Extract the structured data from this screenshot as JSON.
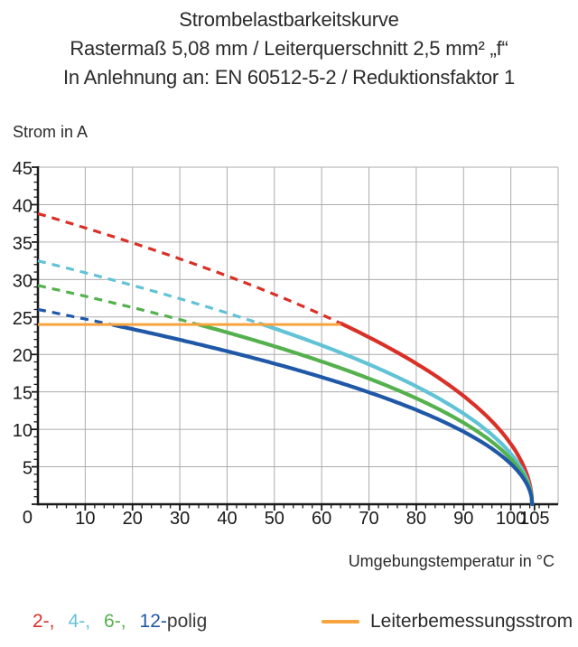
{
  "title": {
    "line1": "Strombelastbarkeitskurve",
    "line2": "Rastermaß 5,08 mm / Leiterquerschnitt 2,5 mm² „f“",
    "line3": "In Anlehnung an: EN 60512-5-2 / Reduktionsfaktor 1"
  },
  "y_axis": {
    "title": "Strom in A",
    "ticks": [
      45,
      40,
      35,
      30,
      25,
      20,
      15,
      10,
      5,
      0
    ],
    "min": 0,
    "max": 45,
    "major_step": 5,
    "minor_step": 1
  },
  "x_axis": {
    "title": "Umgebungstemperatur in °C",
    "ticks": [
      10,
      20,
      30,
      40,
      50,
      60,
      70,
      80,
      90,
      100,
      105
    ],
    "min": 0,
    "max": 110,
    "major_step": 10,
    "minor_step": 2
  },
  "legend": {
    "items": [
      {
        "label": "2-",
        "color": "#D93128"
      },
      {
        "label": "4-",
        "color": "#62C3D6"
      },
      {
        "label": "6-",
        "color": "#54B14E"
      },
      {
        "label": "12-",
        "color": "#2058A8"
      }
    ],
    "separator": ",",
    "suffix": "polig",
    "suffix_color": "#3A3A3A"
  },
  "rated_legend": {
    "label": "Leiterbemessungsstrom",
    "color": "#F7A440"
  },
  "colors": {
    "grid": "#ACACAC",
    "axis": "#1A1A1A",
    "tick_text": "#1A1A1A"
  },
  "chart_data": {
    "type": "line",
    "title": "Strombelastbarkeitskurve",
    "xlabel": "Umgebungstemperatur in °C",
    "ylabel": "Strom in A",
    "xlim": [
      0,
      110
    ],
    "ylim": [
      0,
      45
    ],
    "grid": true,
    "curve_model": "I(T) = I0 * sqrt(1 - T/Tmax); drawn dashed above the rated current (24 A), solid below it",
    "rated_current": {
      "label": "Leiterbemessungsstrom",
      "value_a": 24,
      "t_start": 0,
      "t_end": 64,
      "color": "#F7A440"
    },
    "series": [
      {
        "name": "2-polig",
        "color": "#D93128",
        "i0": 38.8,
        "tmax": 104.5,
        "t_solid_from": 64,
        "points": [
          [
            0,
            38.8
          ],
          [
            10,
            36.9
          ],
          [
            20,
            34.9
          ],
          [
            30,
            32.8
          ],
          [
            40,
            30.5
          ],
          [
            50,
            28.0
          ],
          [
            60,
            25.3
          ],
          [
            64,
            24.1
          ],
          [
            70,
            22.3
          ],
          [
            80,
            18.8
          ],
          [
            90,
            14.5
          ],
          [
            95,
            11.7
          ],
          [
            100,
            8.1
          ],
          [
            103,
            4.7
          ],
          [
            104.5,
            0
          ]
        ]
      },
      {
        "name": "4-polig",
        "color": "#62C3D6",
        "i0": 32.5,
        "tmax": 104.5,
        "t_solid_from": 47,
        "points": [
          [
            0,
            32.5
          ],
          [
            10,
            30.9
          ],
          [
            20,
            29.2
          ],
          [
            30,
            27.4
          ],
          [
            40,
            25.5
          ],
          [
            47,
            24.1
          ],
          [
            50,
            23.5
          ],
          [
            60,
            21.2
          ],
          [
            70,
            18.7
          ],
          [
            80,
            15.7
          ],
          [
            90,
            12.1
          ],
          [
            95,
            9.8
          ],
          [
            100,
            6.7
          ],
          [
            103,
            3.9
          ],
          [
            104.5,
            0
          ]
        ]
      },
      {
        "name": "6-polig",
        "color": "#54B14E",
        "i0": 29.2,
        "tmax": 104.5,
        "t_solid_from": 34,
        "points": [
          [
            0,
            29.2
          ],
          [
            10,
            27.8
          ],
          [
            20,
            26.3
          ],
          [
            30,
            24.7
          ],
          [
            34,
            24.0
          ],
          [
            40,
            22.9
          ],
          [
            50,
            21.1
          ],
          [
            60,
            19.1
          ],
          [
            70,
            16.8
          ],
          [
            80,
            14.1
          ],
          [
            90,
            10.9
          ],
          [
            95,
            8.8
          ],
          [
            100,
            6.1
          ],
          [
            103,
            3.5
          ],
          [
            104.5,
            0
          ]
        ]
      },
      {
        "name": "12-polig",
        "color": "#2058A8",
        "i0": 26.0,
        "tmax": 104.5,
        "t_solid_from": 16,
        "points": [
          [
            0,
            26.0
          ],
          [
            10,
            24.7
          ],
          [
            16,
            24.0
          ],
          [
            20,
            23.4
          ],
          [
            30,
            22.0
          ],
          [
            40,
            20.4
          ],
          [
            50,
            18.8
          ],
          [
            60,
            17.0
          ],
          [
            70,
            14.9
          ],
          [
            80,
            12.6
          ],
          [
            90,
            9.7
          ],
          [
            95,
            7.8
          ],
          [
            100,
            5.4
          ],
          [
            103,
            3.1
          ],
          [
            104.5,
            0
          ]
        ]
      }
    ],
    "legend_position": "bottom"
  }
}
